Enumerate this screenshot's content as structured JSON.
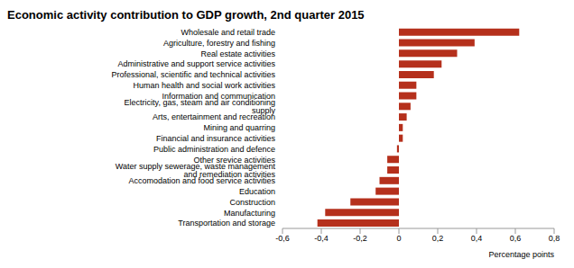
{
  "chart_data": {
    "type": "bar",
    "title": "Economic activity contribution to GDP growth, 2nd quarter 2015",
    "orientation": "horizontal",
    "categories": [
      "Wholesale and retail trade",
      "Agriculture, forestry and fishing",
      "Real estate activities",
      "Administrative and support service activities",
      "Professional, scientific and technical activities",
      "Human health and social work activities",
      "Information and communication",
      "Electricity, gas, steam and air conditioning supply",
      "Arts, entertainment and recreation",
      "Mining and quarring",
      "Financial and insurance activities",
      "Public administration and defence",
      "Other srevice activities",
      "Water supply sewerage, waste management and remediation activities",
      "Accomodation and food service activities",
      "Education",
      "Construction",
      "Manufacturing",
      "Transportation and storage"
    ],
    "values": [
      0.62,
      0.39,
      0.3,
      0.22,
      0.18,
      0.09,
      0.09,
      0.06,
      0.04,
      0.02,
      0.02,
      -0.01,
      -0.06,
      -0.06,
      -0.1,
      -0.12,
      -0.25,
      -0.38,
      -0.42
    ],
    "color": "#b5301c",
    "x_label": "Percentage points",
    "xlim": [
      -0.6,
      0.8
    ],
    "xticks": [
      {
        "value": -0.6,
        "label": "-0,6"
      },
      {
        "value": -0.4,
        "label": "-0,4"
      },
      {
        "value": -0.2,
        "label": "-0,2"
      },
      0,
      {
        "value": 0.2,
        "label": "0,2"
      },
      {
        "value": 0.4,
        "label": "0,4"
      },
      {
        "value": 0.6,
        "label": "0,6"
      },
      {
        "value": 0.8,
        "label": "0,8"
      }
    ],
    "grid": false
  }
}
